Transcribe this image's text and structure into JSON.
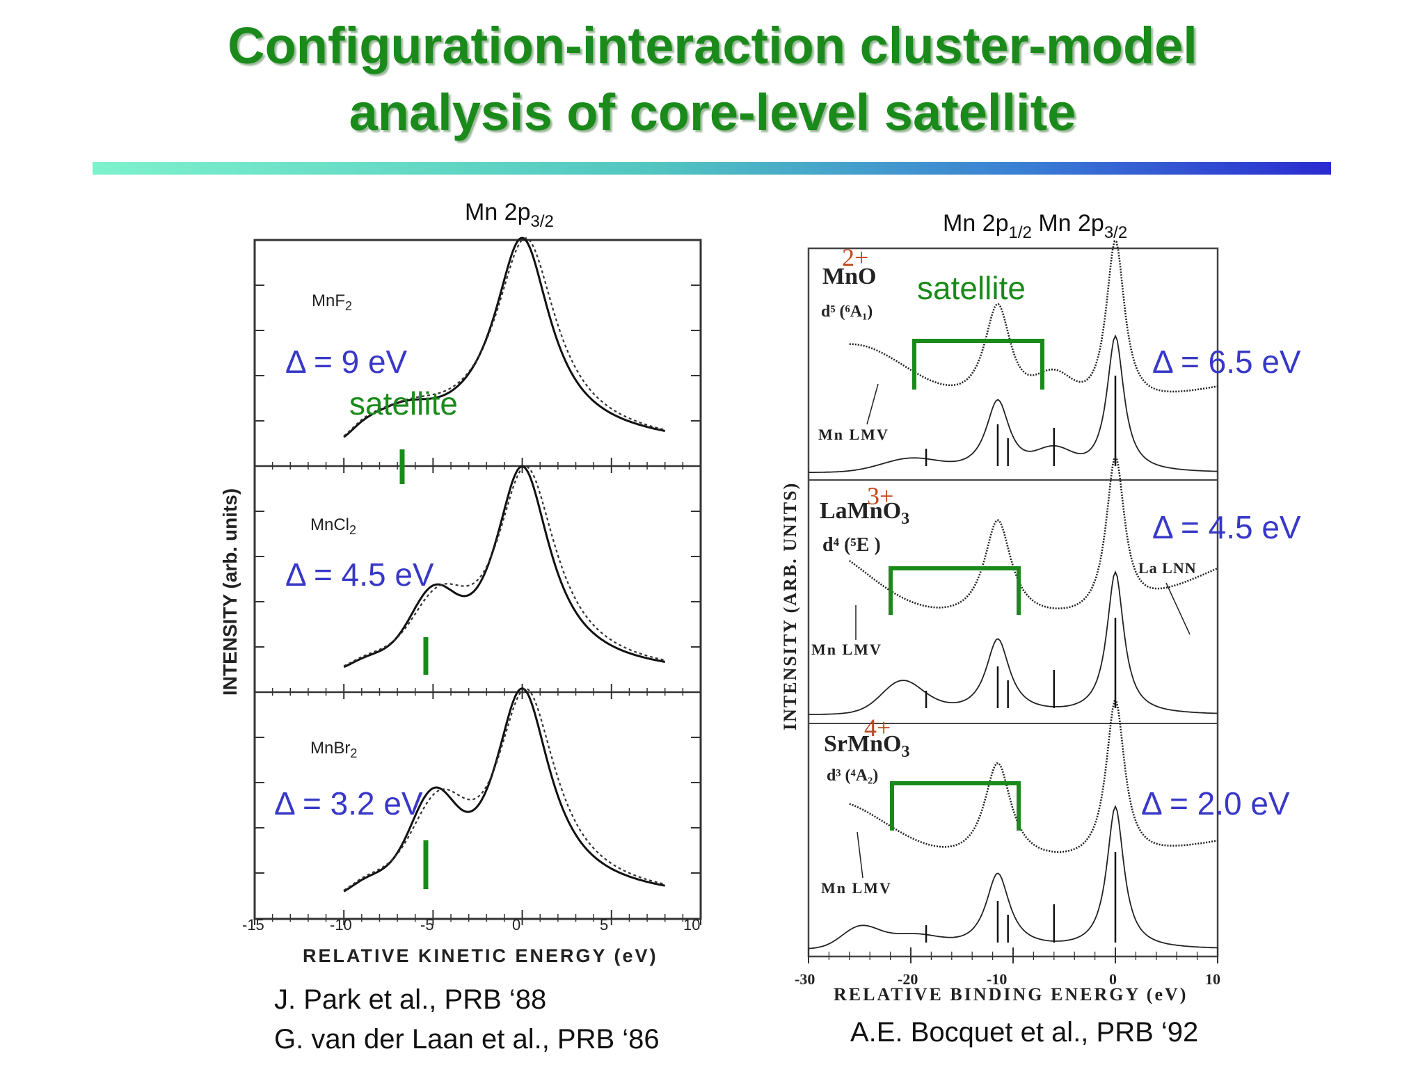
{
  "slide": {
    "title_line1": "Configuration-interaction cluster-model",
    "title_line2": "analysis of core-level satellite"
  },
  "left_figure": {
    "header": {
      "main": "Mn 2p",
      "sub": "3/2"
    },
    "ylabel": "INTENSITY (arb. units)",
    "xlabel": "RELATIVE KINETIC ENERGY (eV)",
    "x_tick_labels": [
      "-15",
      "-10",
      "-5",
      "0",
      "5",
      "10"
    ],
    "panels": [
      {
        "compound": "MnF",
        "subscript": "2",
        "delta": "Δ = 9 eV",
        "satellite_label": "satellite"
      },
      {
        "compound": "MnCl",
        "subscript": "2",
        "delta": "Δ = 4.5 eV"
      },
      {
        "compound": "MnBr",
        "subscript": "2",
        "delta": "Δ = 3.2 eV"
      }
    ],
    "citation_1": "J. Park et al., PRB ‘88",
    "citation_2": "G. van der Laan et al., PRB ‘86"
  },
  "right_figure": {
    "header_a": {
      "main": "Mn 2p",
      "sub": "1/2"
    },
    "header_b": {
      "main": "Mn 2p",
      "sub": "3/2"
    },
    "ylabel": "INTENSITY (ARB. UNITS)",
    "xlabel": "RELATIVE BINDING ENERGY (eV)",
    "x_tick_labels": [
      "-30",
      "-20",
      "-10",
      "0",
      "10"
    ],
    "satellite_label": "satellite",
    "panels": [
      {
        "compound": "MnO",
        "oxidation": "2+",
        "config": "d⁵ (⁶A₁)",
        "delta": "Δ = 6.5 eV",
        "auger": "Mn LMV"
      },
      {
        "compound": "LaMnO",
        "subscript": "3",
        "oxidation": "3+",
        "config": "d⁴ (⁵E )",
        "delta": "Δ = 4.5 eV",
        "auger": "Mn LMV",
        "auger2": "La LNN"
      },
      {
        "compound": "SrMnO",
        "subscript": "3",
        "oxidation": "4+",
        "config": "d³ (⁴A₂)",
        "delta": "Δ = 2.0 eV",
        "auger": "Mn LMV"
      }
    ],
    "citation": "A.E. Bocquet et al., PRB ‘92"
  },
  "chart_data": [
    {
      "type": "line",
      "title": "Mn 2p3/2",
      "xlabel": "RELATIVE KINETIC ENERGY (eV)",
      "ylabel": "INTENSITY (arb. units)",
      "xlim": [
        -15,
        10
      ],
      "x_ticks": [
        -15,
        -10,
        -5,
        0,
        5,
        10
      ],
      "series": [
        {
          "name": "MnF2",
          "main_peak_x": 0,
          "satellite_x": -6.5,
          "delta_eV": 9
        },
        {
          "name": "MnCl2",
          "main_peak_x": 0,
          "satellite_x": -5,
          "delta_eV": 4.5
        },
        {
          "name": "MnBr2",
          "main_peak_x": 0,
          "satellite_x": -5,
          "delta_eV": 3.2
        }
      ]
    },
    {
      "type": "line",
      "title": "Mn 2p1/2 Mn 2p3/2",
      "xlabel": "RELATIVE BINDING ENERGY (eV)",
      "ylabel": "INTENSITY (ARB. UNITS)",
      "xlim": [
        -30,
        10
      ],
      "x_ticks": [
        -30,
        -20,
        -10,
        0,
        10
      ],
      "series": [
        {
          "name": "MnO",
          "main_peak_x": 0,
          "mn2p12_peak_x": -11.5,
          "satellite_bracket": [
            -20,
            -7
          ],
          "delta_eV": 6.5
        },
        {
          "name": "LaMnO3",
          "main_peak_x": 0,
          "mn2p12_peak_x": -11.5,
          "satellite_bracket": [
            -22,
            -9.5
          ],
          "delta_eV": 4.5
        },
        {
          "name": "SrMnO3",
          "main_peak_x": 0,
          "mn2p12_peak_x": -11.5,
          "satellite_bracket": [
            -22,
            -9.5
          ],
          "delta_eV": 2.0
        }
      ]
    }
  ]
}
